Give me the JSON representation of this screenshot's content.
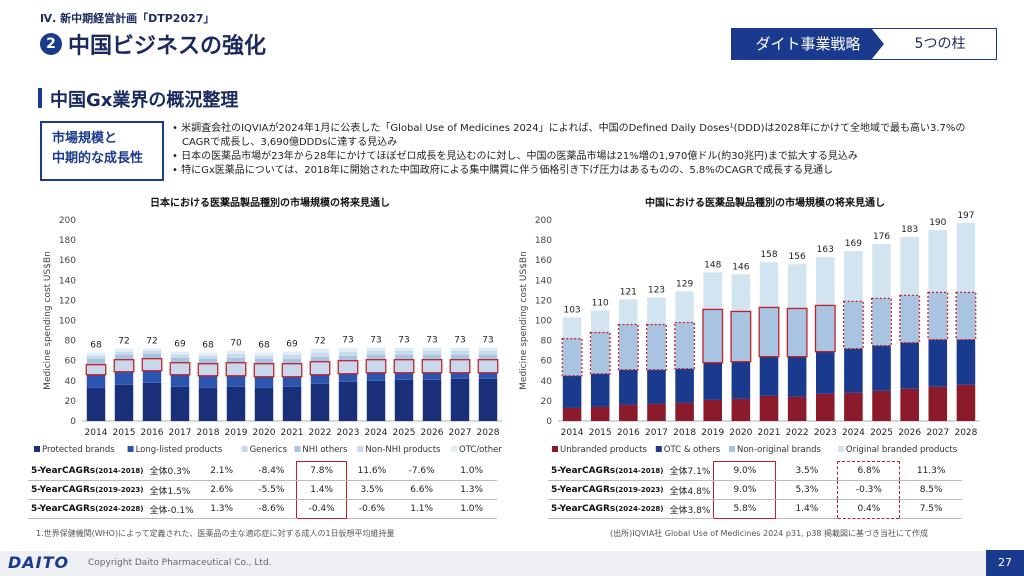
{
  "header": {
    "section": "Ⅳ. 新中期経営計画「DTP2027」",
    "number": "2",
    "title": "中国ビジネスの強化",
    "strategy": "ダイト事業戦略",
    "pillars": "5つの柱"
  },
  "subtitle": "中国Gx業界の概況整理",
  "market_box": {
    "line1": "市場規模と",
    "line2": "中期的な成長性"
  },
  "bullets": [
    "• 米調査会社のIQVIAが2024年1月に公表した「Global Use of Medicines 2024」によれば、中国のDefined Daily Doses¹(DDD)は2028年にかけて全地域で最も高い3.7%のCAGRで成長し、3,690億DDDsに達する見込み",
    "• 日本の医薬品市場が23年から28年にかけてほぼゼロ成長を見込むのに対し、中国の医薬品市場は21%増の1,970億ドル(約30兆円)まで拡大する見込み",
    "• 特にGx医薬品については、2018年に開始された中国政府による集中購買に伴う価格引き下げ圧力はあるものの、5.8%のCAGRで成長する見通し"
  ],
  "chart_data": [
    {
      "type": "bar",
      "stacked": true,
      "title": "日本における医薬品製品種別の市場規模の将来見通し",
      "ylabel": "Medicine spending cost US$Bn",
      "ylim": [
        0,
        200
      ],
      "yticks": [
        0,
        20,
        40,
        60,
        80,
        100,
        120,
        140,
        160,
        180,
        200
      ],
      "categories": [
        "2014",
        "2015",
        "2016",
        "2017",
        "2018",
        "2019",
        "2020",
        "2021",
        "2022",
        "2023",
        "2024",
        "2025",
        "2026",
        "2027",
        "2028"
      ],
      "totals": [
        68,
        72,
        72,
        69,
        68,
        70,
        68,
        69,
        72,
        73,
        73,
        73,
        73,
        73,
        73
      ],
      "series": [
        {
          "name": "Protected brands",
          "color": "#1a2f7a",
          "values": [
            33,
            36,
            38,
            34,
            33,
            34,
            33,
            34,
            37,
            39,
            40,
            41,
            41,
            42,
            42
          ]
        },
        {
          "name": "Long-listed products",
          "color": "#2c55b0",
          "values": [
            13,
            13,
            12,
            12,
            12,
            11,
            11,
            10,
            9,
            8,
            8,
            7,
            7,
            6,
            6
          ]
        },
        {
          "name": "Generics",
          "color": "#c8d8ea",
          "values": [
            10,
            12,
            12,
            12,
            12,
            13,
            13,
            13,
            13,
            13,
            13,
            13,
            13,
            13,
            13
          ]
        },
        {
          "name": "NHI others",
          "color": "#a9c4e0",
          "values": [
            6,
            5,
            5,
            5,
            5,
            5,
            5,
            5,
            5,
            5,
            5,
            5,
            5,
            5,
            5
          ]
        },
        {
          "name": "Non-NHI products",
          "color": "#c6dced",
          "values": [
            3,
            3,
            3,
            3,
            3,
            4,
            3,
            4,
            4,
            4,
            4,
            4,
            4,
            4,
            4
          ]
        },
        {
          "name": "OTC/other",
          "color": "#e2ecf5",
          "values": [
            3,
            3,
            2,
            3,
            3,
            3,
            3,
            3,
            4,
            4,
            3,
            3,
            3,
            3,
            3
          ]
        }
      ],
      "highlight_series": "Generics",
      "legend": "bottom"
    },
    {
      "type": "bar",
      "stacked": true,
      "title": "中国における医薬品製品種別の市場規模の将来見通し",
      "ylabel": "Medicine spending cost US$Bn",
      "ylim": [
        0,
        200
      ],
      "yticks": [
        0,
        20,
        40,
        60,
        80,
        100,
        120,
        140,
        160,
        180,
        200
      ],
      "categories": [
        "2014",
        "2015",
        "2016",
        "2017",
        "2018",
        "2019",
        "2020",
        "2021",
        "2022",
        "2023",
        "2024",
        "2025",
        "2026",
        "2027",
        "2028"
      ],
      "totals": [
        103,
        110,
        121,
        123,
        129,
        148,
        146,
        158,
        156,
        163,
        169,
        176,
        183,
        190,
        197
      ],
      "series": [
        {
          "name": "Unbranded products",
          "color": "#8b1a2b",
          "values": [
            13,
            14,
            16,
            17,
            18,
            21,
            22,
            25,
            24,
            27,
            28,
            30,
            32,
            34,
            36
          ]
        },
        {
          "name": "OTC & others",
          "color": "#1a3a8e",
          "values": [
            32,
            33,
            35,
            34,
            34,
            37,
            37,
            39,
            40,
            42,
            44,
            45,
            46,
            47,
            45
          ]
        },
        {
          "name": "Non-original brands",
          "color": "#a9c4e0",
          "values": [
            37,
            41,
            45,
            45,
            46,
            53,
            50,
            49,
            48,
            46,
            47,
            47,
            47,
            47,
            47
          ]
        },
        {
          "name": "Original branded products",
          "color": "#d3e4f1",
          "values": [
            21,
            22,
            25,
            27,
            31,
            37,
            37,
            45,
            44,
            48,
            50,
            54,
            58,
            62,
            69
          ]
        }
      ],
      "highlight_series": "Non-original brands",
      "legend": "bottom"
    }
  ],
  "jp_table": {
    "rows": [
      {
        "label": "5-YearCAGRs",
        "period": "(2014-2018)",
        "total": "全体0.3%",
        "values": [
          "2.1%",
          "-8.4%",
          "7.8%",
          "11.6%",
          "-7.6%",
          "1.0%"
        ]
      },
      {
        "label": "5-YearCAGRs",
        "period": "(2019-2023)",
        "total": "全体1.5%",
        "values": [
          "2.6%",
          "-5.5%",
          "1.4%",
          "3.5%",
          "6.6%",
          "1.3%"
        ]
      },
      {
        "label": "5-YearCAGRs",
        "period": "(2024-2028)",
        "total": "全体-0.1%",
        "values": [
          "1.3%",
          "-8.6%",
          "-0.4%",
          "-0.6%",
          "1.1%",
          "1.0%"
        ]
      }
    ]
  },
  "cn_table": {
    "rows": [
      {
        "label": "5-YearCAGRs",
        "period": "(2014-2018)",
        "total": "全体7.1%",
        "values": [
          "9.0%",
          "3.5%",
          "6.8%",
          "11.3%"
        ]
      },
      {
        "label": "5-YearCAGRs",
        "period": "(2019-2023)",
        "total": "全体4.8%",
        "values": [
          "9.0%",
          "5.3%",
          "-0.3%",
          "8.5%"
        ]
      },
      {
        "label": "5-YearCAGRs",
        "period": "(2024-2028)",
        "total": "全体3.8%",
        "values": [
          "5.8%",
          "1.4%",
          "0.4%",
          "7.5%"
        ]
      }
    ]
  },
  "footnote": "1.世界保健機関(WHO)によって定義された、医薬品の主な適応症に対する成人の1日仮想平均維持量",
  "source": "(出所)IQVIA社 Global Use of Medicines 2024 p31, p38 掲載図に基づき当社にて作成",
  "footer": {
    "logo": "DAITO",
    "copyright": "Copyright  Daito Pharmaceutical Co., Ltd.",
    "page": "27"
  }
}
